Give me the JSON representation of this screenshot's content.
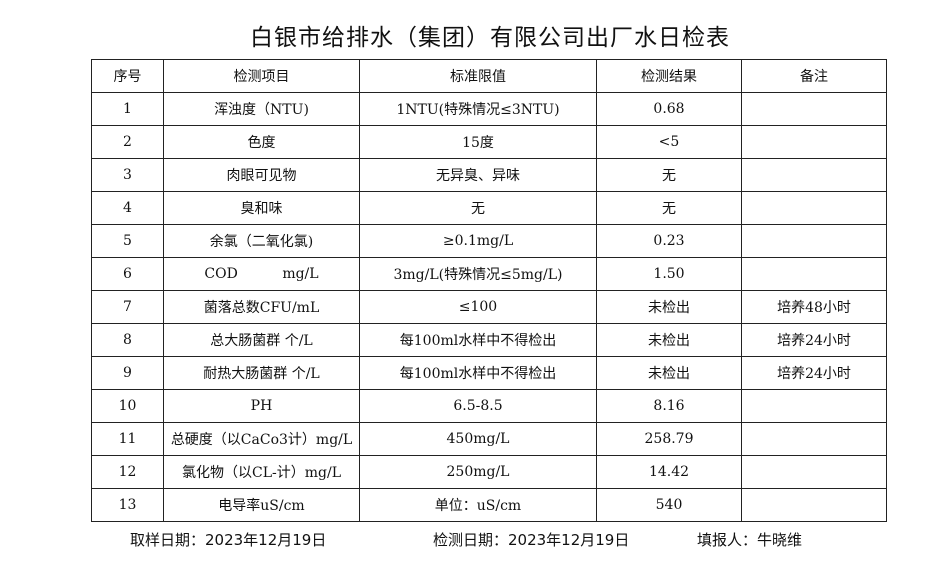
{
  "title": "白银市给排水（集团）有限公司出厂水日检表",
  "columns": [
    "序号",
    "检测项目",
    "标准限值",
    "检测结果",
    "备注"
  ],
  "rows": [
    [
      "1",
      "浑浊度（NTU)",
      "1NTU(特殊情况≤3NTU)",
      "0.68",
      ""
    ],
    [
      "2",
      "色度",
      "15度",
      "<5",
      ""
    ],
    [
      "3",
      "肉眼可见物",
      "无异臭、异味",
      "无",
      ""
    ],
    [
      "4",
      "臭和味",
      "无",
      "无",
      ""
    ],
    [
      "5",
      "余氯（二氧化氯)",
      "≥0.1mg/L",
      "0.23",
      ""
    ],
    [
      "6",
      "COD          mg/L",
      "3mg/L(特殊情况≤5mg/L)",
      "1.50",
      ""
    ],
    [
      "7",
      "菌落总数CFU/mL",
      "≤100",
      "未检出",
      "培养48小时"
    ],
    [
      "8",
      "总大肠菌群 个/L",
      "每100ml水样中不得检出",
      "未检出",
      "培养24小时"
    ],
    [
      "9",
      "耐热大肠菌群 个/L",
      "每100ml水样中不得检出",
      "未检出",
      "培养24小时"
    ],
    [
      "10",
      "PH",
      "6.5-8.5",
      "8.16",
      ""
    ],
    [
      "11",
      "总硬度（以CaCo3计）mg/L",
      "450mg/L",
      "258.79",
      ""
    ],
    [
      "12",
      "氯化物（以CL-计）mg/L",
      "250mg/L",
      "14.42",
      ""
    ],
    [
      "13",
      "电导率uS/cm",
      "单位：uS/cm",
      "540",
      ""
    ]
  ],
  "footer": {
    "sampling_date": "取样日期：2023年12月19日",
    "test_date": "检测日期：2023年12月19日",
    "reporter": "填报人：牛晓维"
  }
}
